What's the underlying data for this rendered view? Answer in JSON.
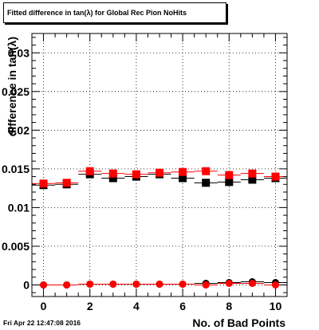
{
  "chart_data": {
    "type": "scatter",
    "title": "Fitted difference in tan(λ) for Global Rec Pion NoHits",
    "xlabel": "No. of Bad Points",
    "ylabel": "difference in tan(λ)",
    "xlim": [
      -0.5,
      10.5
    ],
    "ylim": [
      -0.0015,
      0.0325
    ],
    "x_ticks": [
      0,
      2,
      4,
      6,
      8,
      10
    ],
    "y_ticks": [
      0,
      0.005,
      0.01,
      0.015,
      0.02,
      0.025,
      0.03
    ],
    "y_tick_labels": [
      "0",
      "0.005",
      "0.01",
      "0.015",
      "0.02",
      "0.025",
      "0.03"
    ],
    "grid": true,
    "series": [
      {
        "marker": "square",
        "color": "#000000",
        "x": [
          0,
          1,
          2,
          3,
          4,
          5,
          6,
          7,
          8,
          9,
          10
        ],
        "y": [
          0.0129,
          0.013,
          0.0143,
          0.0138,
          0.014,
          0.0143,
          0.0138,
          0.0132,
          0.0133,
          0.0136,
          0.0138
        ],
        "xerr": 0.5
      },
      {
        "marker": "square",
        "color": "#ff0000",
        "x": [
          0,
          1,
          2,
          3,
          4,
          5,
          6,
          7,
          8,
          9,
          10
        ],
        "y": [
          0.0131,
          0.0132,
          0.0147,
          0.0144,
          0.0143,
          0.0145,
          0.0146,
          0.0147,
          0.0142,
          0.0144,
          0.014
        ],
        "xerr": 0.5
      },
      {
        "marker": "circle",
        "color": "#000000",
        "x": [
          0,
          1,
          2,
          3,
          4,
          5,
          6,
          7,
          8,
          9,
          10
        ],
        "y": [
          0.0,
          0.0,
          0.0001,
          0.0001,
          0.0001,
          0.0001,
          0.0001,
          0.0002,
          0.0003,
          0.0004,
          0.0003
        ],
        "xerr": 0.5
      },
      {
        "marker": "circle",
        "color": "#ff0000",
        "x": [
          0,
          1,
          2,
          3,
          4,
          5,
          6,
          7,
          8,
          9,
          10
        ],
        "y": [
          0.0,
          0.0,
          0.0001,
          0.0001,
          0.0001,
          0.0001,
          0.0001,
          0.0,
          0.0002,
          0.0002,
          0.0
        ],
        "xerr": 0.5
      }
    ]
  },
  "timestamp": "Fri Apr 22 12:47:08 2016"
}
